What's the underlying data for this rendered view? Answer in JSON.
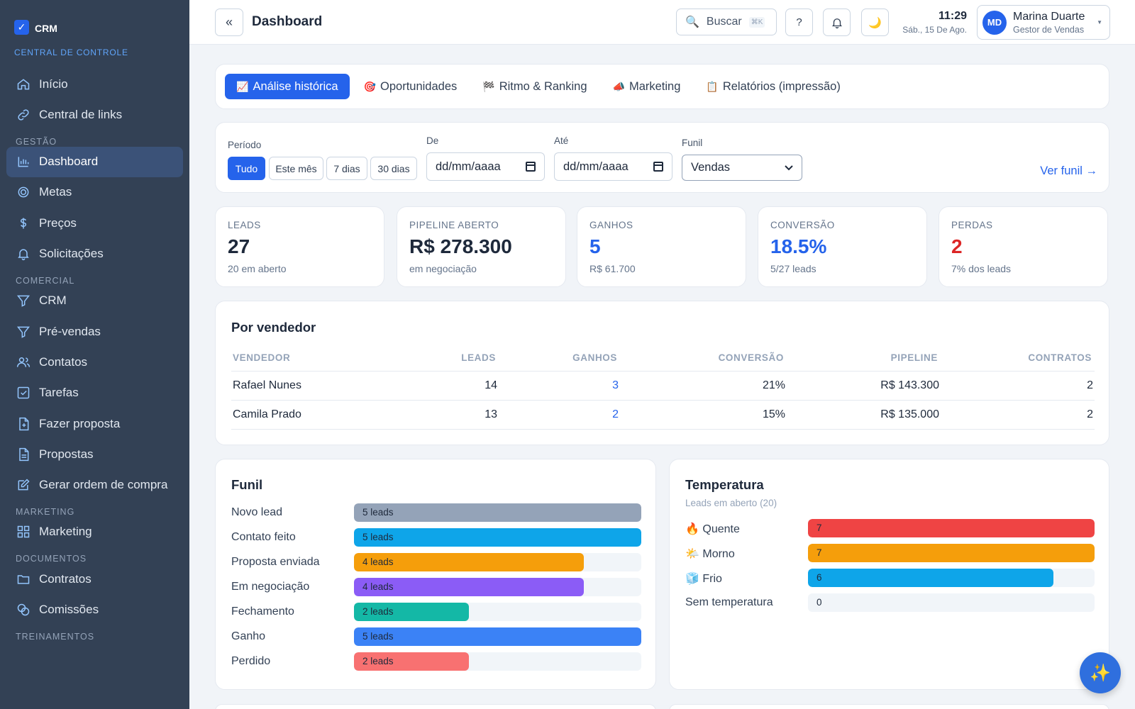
{
  "brand": {
    "name": "CRM",
    "subtitle": "CENTRAL DE CONTROLE"
  },
  "sidebar": {
    "top": [
      {
        "label": "Início",
        "icon": "home-icon"
      },
      {
        "label": "Central de links",
        "icon": "link-icon"
      }
    ],
    "sections": [
      {
        "title": "GESTÃO",
        "items": [
          {
            "label": "Dashboard",
            "icon": "chart-icon",
            "active": true
          },
          {
            "label": "Metas",
            "icon": "target-icon"
          },
          {
            "label": "Preços",
            "icon": "dollar-icon"
          },
          {
            "label": "Solicitações",
            "icon": "bell-icon"
          }
        ]
      },
      {
        "title": "COMERCIAL",
        "items": [
          {
            "label": "CRM",
            "icon": "filter-icon"
          },
          {
            "label": "Pré-vendas",
            "icon": "filter-icon"
          },
          {
            "label": "Contatos",
            "icon": "users-icon"
          },
          {
            "label": "Tarefas",
            "icon": "checkbox-icon"
          },
          {
            "label": "Fazer proposta",
            "icon": "file-plus-icon"
          },
          {
            "label": "Propostas",
            "icon": "file-icon"
          },
          {
            "label": "Gerar ordem de compra",
            "icon": "edit-icon"
          }
        ]
      },
      {
        "title": "MARKETING",
        "items": [
          {
            "label": "Marketing",
            "icon": "grid-icon"
          }
        ]
      },
      {
        "title": "DOCUMENTOS",
        "items": [
          {
            "label": "Contratos",
            "icon": "folder-icon"
          },
          {
            "label": "Comissões",
            "icon": "coins-icon"
          }
        ]
      },
      {
        "title": "TREINAMENTOS",
        "items": []
      }
    ]
  },
  "header": {
    "title": "Dashboard",
    "collapse_icon": "«",
    "search_label": "Buscar",
    "search_shortcut": "⌘K",
    "help_label": "?",
    "time": "11:29",
    "date": "Sáb., 15 De Ago.",
    "user": {
      "initials": "MD",
      "name": "Marina Duarte",
      "role": "Gestor de Vendas"
    }
  },
  "tabs": [
    {
      "label": "Análise histórica",
      "icon": "📈",
      "active": true
    },
    {
      "label": "Oportunidades",
      "icon": "🎯"
    },
    {
      "label": "Ritmo & Ranking",
      "icon": "🏁"
    },
    {
      "label": "Marketing",
      "icon": "📣"
    },
    {
      "label": "Relatórios (impressão)",
      "icon": "📋"
    }
  ],
  "filters": {
    "periodo_label": "Período",
    "periodo_options": [
      "Tudo",
      "Este mês",
      "7 dias",
      "30 dias"
    ],
    "periodo_selected": "Tudo",
    "de_label": "De",
    "de_value": "dd/mm/aaaa",
    "ate_label": "Até",
    "ate_value": "dd/mm/aaaa",
    "funil_label": "Funil",
    "funil_value": "Vendas",
    "ver_funil": "Ver funil →"
  },
  "kpis": [
    {
      "label": "LEADS",
      "value": "27",
      "sub": "20 em aberto",
      "color": "#1e293b"
    },
    {
      "label": "PIPELINE ABERTO",
      "value": "R$ 278.300",
      "sub": "em negociação",
      "color": "#1e293b"
    },
    {
      "label": "GANHOS",
      "value": "5",
      "sub": "R$ 61.700",
      "color": "#2563eb"
    },
    {
      "label": "CONVERSÃO",
      "value": "18.5%",
      "sub": "5/27 leads",
      "color": "#2563eb"
    },
    {
      "label": "PERDAS",
      "value": "2",
      "sub": "7% dos leads",
      "color": "#dc2626"
    }
  ],
  "vendedores": {
    "title": "Por vendedor",
    "columns": [
      "VENDEDOR",
      "LEADS",
      "GANHOS",
      "CONVERSÃO",
      "PIPELINE",
      "CONTRATOS"
    ],
    "rows": [
      [
        "Rafael Nunes",
        "14",
        "3",
        "21%",
        "R$ 143.300",
        "2"
      ],
      [
        "Camila Prado",
        "13",
        "2",
        "15%",
        "R$ 135.000",
        "2"
      ]
    ]
  },
  "funil": {
    "title": "Funil",
    "max": 5,
    "stages": [
      {
        "label": "Novo lead",
        "value": 5,
        "text": "5 leads",
        "color": "#94a3b8"
      },
      {
        "label": "Contato feito",
        "value": 5,
        "text": "5 leads",
        "color": "#0ea5e9"
      },
      {
        "label": "Proposta enviada",
        "value": 4,
        "text": "4 leads",
        "color": "#f59e0b"
      },
      {
        "label": "Em negociação",
        "value": 4,
        "text": "4 leads",
        "color": "#8b5cf6"
      },
      {
        "label": "Fechamento",
        "value": 2,
        "text": "2 leads",
        "color": "#14b8a6"
      },
      {
        "label": "Ganho",
        "value": 5,
        "text": "5 leads",
        "color": "#3b82f6"
      },
      {
        "label": "Perdido",
        "value": 2,
        "text": "2 leads",
        "color": "#f87171"
      }
    ]
  },
  "temperatura": {
    "title": "Temperatura",
    "subtitle": "Leads em aberto (20)",
    "max": 7,
    "items": [
      {
        "label": "Quente",
        "icon": "🔥",
        "value": 7,
        "text": "7",
        "color": "#ef4444"
      },
      {
        "label": "Morno",
        "icon": "🌤️",
        "value": 7,
        "text": "7",
        "color": "#f59e0b"
      },
      {
        "label": "Frio",
        "icon": "🧊",
        "value": 6,
        "text": "6",
        "color": "#0ea5e9"
      },
      {
        "label": "Sem temperatura",
        "icon": "",
        "value": 0,
        "text": "0",
        "color": "#cbd5e1"
      }
    ]
  },
  "fab_icon": "✨"
}
